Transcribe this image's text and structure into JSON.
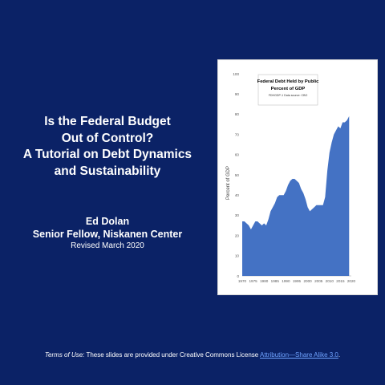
{
  "slide": {
    "title_lines": [
      "Is the Federal Budget",
      "Out of Control?",
      "A Tutorial on Debt Dynamics",
      "and Sustainability"
    ],
    "author": "Ed Dolan",
    "role": "Senior Fellow, Niskanen Center",
    "revised": "Revised March 2020"
  },
  "terms": {
    "label": "Terms of Use:",
    "text": "These slides are provided under Creative Commons License",
    "link_text": "Attribution—Share Alike 3.0",
    "end": "."
  },
  "chart_data": {
    "type": "area",
    "title": "Federal Debt Held by Public",
    "subtitle": "Percent of GDP",
    "note": "FDHGDP-1 Data source: CBO",
    "ylabel": "Percent of GDP",
    "xlabel": "",
    "ylim": [
      0,
      100
    ],
    "xlim": [
      1970,
      2020
    ],
    "yticks": [
      0,
      10,
      20,
      30,
      40,
      50,
      60,
      70,
      80,
      90,
      100
    ],
    "xticks": [
      1970,
      1975,
      1980,
      1985,
      1990,
      1995,
      2000,
      2005,
      2010,
      2015,
      2020
    ],
    "grid": false,
    "legend": "none",
    "color": "#4472c4",
    "x": [
      1970,
      1971,
      1972,
      1973,
      1974,
      1975,
      1976,
      1977,
      1978,
      1979,
      1980,
      1981,
      1982,
      1983,
      1984,
      1985,
      1986,
      1987,
      1988,
      1989,
      1990,
      1991,
      1992,
      1993,
      1994,
      1995,
      1996,
      1997,
      1998,
      1999,
      2000,
      2001,
      2002,
      2003,
      2004,
      2005,
      2006,
      2007,
      2008,
      2009,
      2010,
      2011,
      2012,
      2013,
      2014,
      2015,
      2016,
      2017,
      2018,
      2019
    ],
    "y": [
      27,
      27,
      26,
      25,
      23,
      25,
      27,
      27,
      26,
      25,
      26,
      25,
      28,
      32,
      34,
      36,
      39,
      40,
      40,
      40,
      42,
      45,
      47,
      48,
      48,
      47,
      46,
      43,
      41,
      38,
      34,
      32,
      33,
      34,
      35,
      35,
      35,
      35,
      39,
      52,
      61,
      66,
      70,
      72,
      74,
      73,
      76,
      76,
      77,
      79
    ]
  }
}
